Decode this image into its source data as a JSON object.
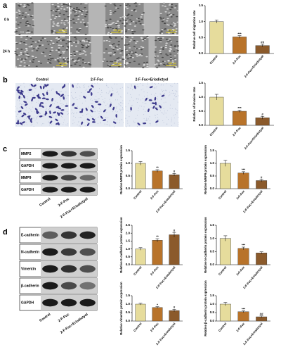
{
  "panel_labels": [
    "a",
    "b",
    "c",
    "d"
  ],
  "migration": {
    "rows": [
      "0 h",
      "24 h"
    ],
    "scale_bar": "100 μm"
  },
  "invasion": {
    "columns": [
      "Control",
      "2-F-Fuc",
      "2-F-Fuc+Eriodictyol"
    ]
  },
  "blots": [
    {
      "rows": [
        "MMP2",
        "GAPDH",
        "MMP9",
        "GAPDH"
      ],
      "lanes": [
        "Control",
        "2-F-Fuc",
        "2-F-Fuc+Eriodictyol"
      ]
    },
    {
      "rows": [
        "E-cadherin",
        "N-cadherin",
        "Vimentin",
        "β-cadherin",
        "GAPDH"
      ],
      "lanes": [
        "Control",
        "2-F-Fuc",
        "2-F-Fuc+Eriodictyol"
      ]
    }
  ],
  "chart_data": [
    {
      "type": "bar",
      "ylabel": "Relative cell migration rate",
      "categories": [
        "Control",
        "2-F-Fuc",
        "2-F-Fuc+Eriodictyol"
      ],
      "values": [
        1.0,
        0.52,
        0.25
      ],
      "errors": [
        0.05,
        0.04,
        0.04
      ],
      "annotations": [
        null,
        "***",
        "##"
      ],
      "colors": [
        "#e6dc9c",
        "#b8732a",
        "#8b5a2b"
      ],
      "ylim": [
        0,
        1.5
      ],
      "yticks": [
        {
          "value": 0,
          "label": "0.0"
        },
        0.5,
        {
          "value": 1,
          "label": "1.0"
        },
        1.5
      ]
    },
    {
      "type": "bar",
      "ylabel": "Relative of invasive rate",
      "categories": [
        "Control",
        "2-F-Fuc",
        "2-F-Fuc+Eriodictyol"
      ],
      "values": [
        1.0,
        0.5,
        0.27
      ],
      "errors": [
        0.1,
        0.04,
        0.05
      ],
      "annotations": [
        null,
        "***",
        "#"
      ],
      "colors": [
        "#e6dc9c",
        "#b8732a",
        "#8b5a2b"
      ],
      "ylim": [
        0,
        1.5
      ],
      "yticks": [
        {
          "value": 0,
          "label": "0.0"
        },
        0.5,
        {
          "value": 1,
          "label": "1.0"
        },
        1.5
      ]
    },
    {
      "type": "bar",
      "ylabel": "Relative MMP2 protein expression",
      "categories": [
        "Control",
        "2-F-Fuc",
        "2-F-Fuc+Eriodictyol"
      ],
      "values": [
        1.0,
        0.7,
        0.55
      ],
      "errors": [
        0.07,
        0.05,
        0.05
      ],
      "annotations": [
        null,
        "**",
        "#"
      ],
      "colors": [
        "#e6dc9c",
        "#b8732a",
        "#8b5a2b"
      ],
      "ylim": [
        0,
        1.5
      ],
      "yticks": [
        {
          "value": 0,
          "label": "0.0"
        },
        0.5,
        {
          "value": 1,
          "label": "1.0"
        },
        1.5
      ]
    },
    {
      "type": "bar",
      "ylabel": "Relative MMP9 protein expression",
      "categories": [
        "Control",
        "2-F-Fuc",
        "2-F-Fuc+Eriodictyol"
      ],
      "values": [
        1.0,
        0.62,
        0.32
      ],
      "errors": [
        0.12,
        0.05,
        0.05
      ],
      "annotations": [
        null,
        "***",
        "#"
      ],
      "colors": [
        "#e6dc9c",
        "#b8732a",
        "#8b5a2b"
      ],
      "ylim": [
        0,
        1.5
      ],
      "yticks": [
        {
          "value": 0,
          "label": "0.0"
        },
        0.5,
        {
          "value": 1,
          "label": "1.0"
        },
        1.5
      ]
    },
    {
      "type": "bar",
      "ylabel": "Relative E-cadherin protein expression",
      "categories": [
        "Control",
        "2-F-Fuc",
        "2-F-Fuc+Eriodictyol"
      ],
      "values": [
        1.0,
        1.55,
        1.9
      ],
      "errors": [
        0.08,
        0.1,
        0.15
      ],
      "annotations": [
        null,
        "**",
        "#"
      ],
      "colors": [
        "#e6dc9c",
        "#b8732a",
        "#8b5a2b"
      ],
      "ylim": [
        0,
        2.5
      ],
      "yticks": [
        {
          "value": 0,
          "label": "0.0"
        },
        0.5,
        {
          "value": 1,
          "label": "1.0"
        },
        1.5,
        {
          "value": 2,
          "label": "2.0"
        },
        2.5
      ]
    },
    {
      "type": "bar",
      "ylabel": "Relative N-cadherin protein expression",
      "categories": [
        "Control",
        "2-F-Fuc",
        "2-F-Fuc+Eriodictyol"
      ],
      "values": [
        1.0,
        0.62,
        0.45
      ],
      "errors": [
        0.1,
        0.05,
        0.04
      ],
      "annotations": [
        null,
        "***",
        null
      ],
      "colors": [
        "#e6dc9c",
        "#b8732a",
        "#8b5a2b"
      ],
      "ylim": [
        0,
        1.5
      ],
      "yticks": [
        {
          "value": 0,
          "label": "0.0"
        },
        0.5,
        {
          "value": 1,
          "label": "1.0"
        },
        1.5
      ]
    },
    {
      "type": "bar",
      "ylabel": "Relative Vimentin protein expression",
      "categories": [
        "Control",
        "2-F-Fuc",
        "2-F-Fuc+Eriodictyol"
      ],
      "values": [
        1.0,
        0.8,
        0.62
      ],
      "errors": [
        0.05,
        0.05,
        0.07
      ],
      "annotations": [
        null,
        "*",
        "#"
      ],
      "colors": [
        "#e6dc9c",
        "#b8732a",
        "#8b5a2b"
      ],
      "ylim": [
        0,
        1.5
      ],
      "yticks": [
        {
          "value": 0,
          "label": "0.0"
        },
        0.5,
        {
          "value": 1,
          "label": "1.0"
        },
        1.5
      ]
    },
    {
      "type": "bar",
      "ylabel": "Relative β-cadherin protein expression",
      "categories": [
        "Control",
        "2-F-Fuc",
        "2-F-Fuc+Eriodictyol"
      ],
      "values": [
        1.0,
        0.55,
        0.25
      ],
      "errors": [
        0.1,
        0.05,
        0.05
      ],
      "annotations": [
        null,
        "***",
        "##"
      ],
      "colors": [
        "#e6dc9c",
        "#b8732a",
        "#8b5a2b"
      ],
      "ylim": [
        0,
        1.5
      ],
      "yticks": [
        {
          "value": 0,
          "label": "0.0"
        },
        0.5,
        {
          "value": 1,
          "label": "1.0"
        },
        1.5
      ]
    }
  ]
}
